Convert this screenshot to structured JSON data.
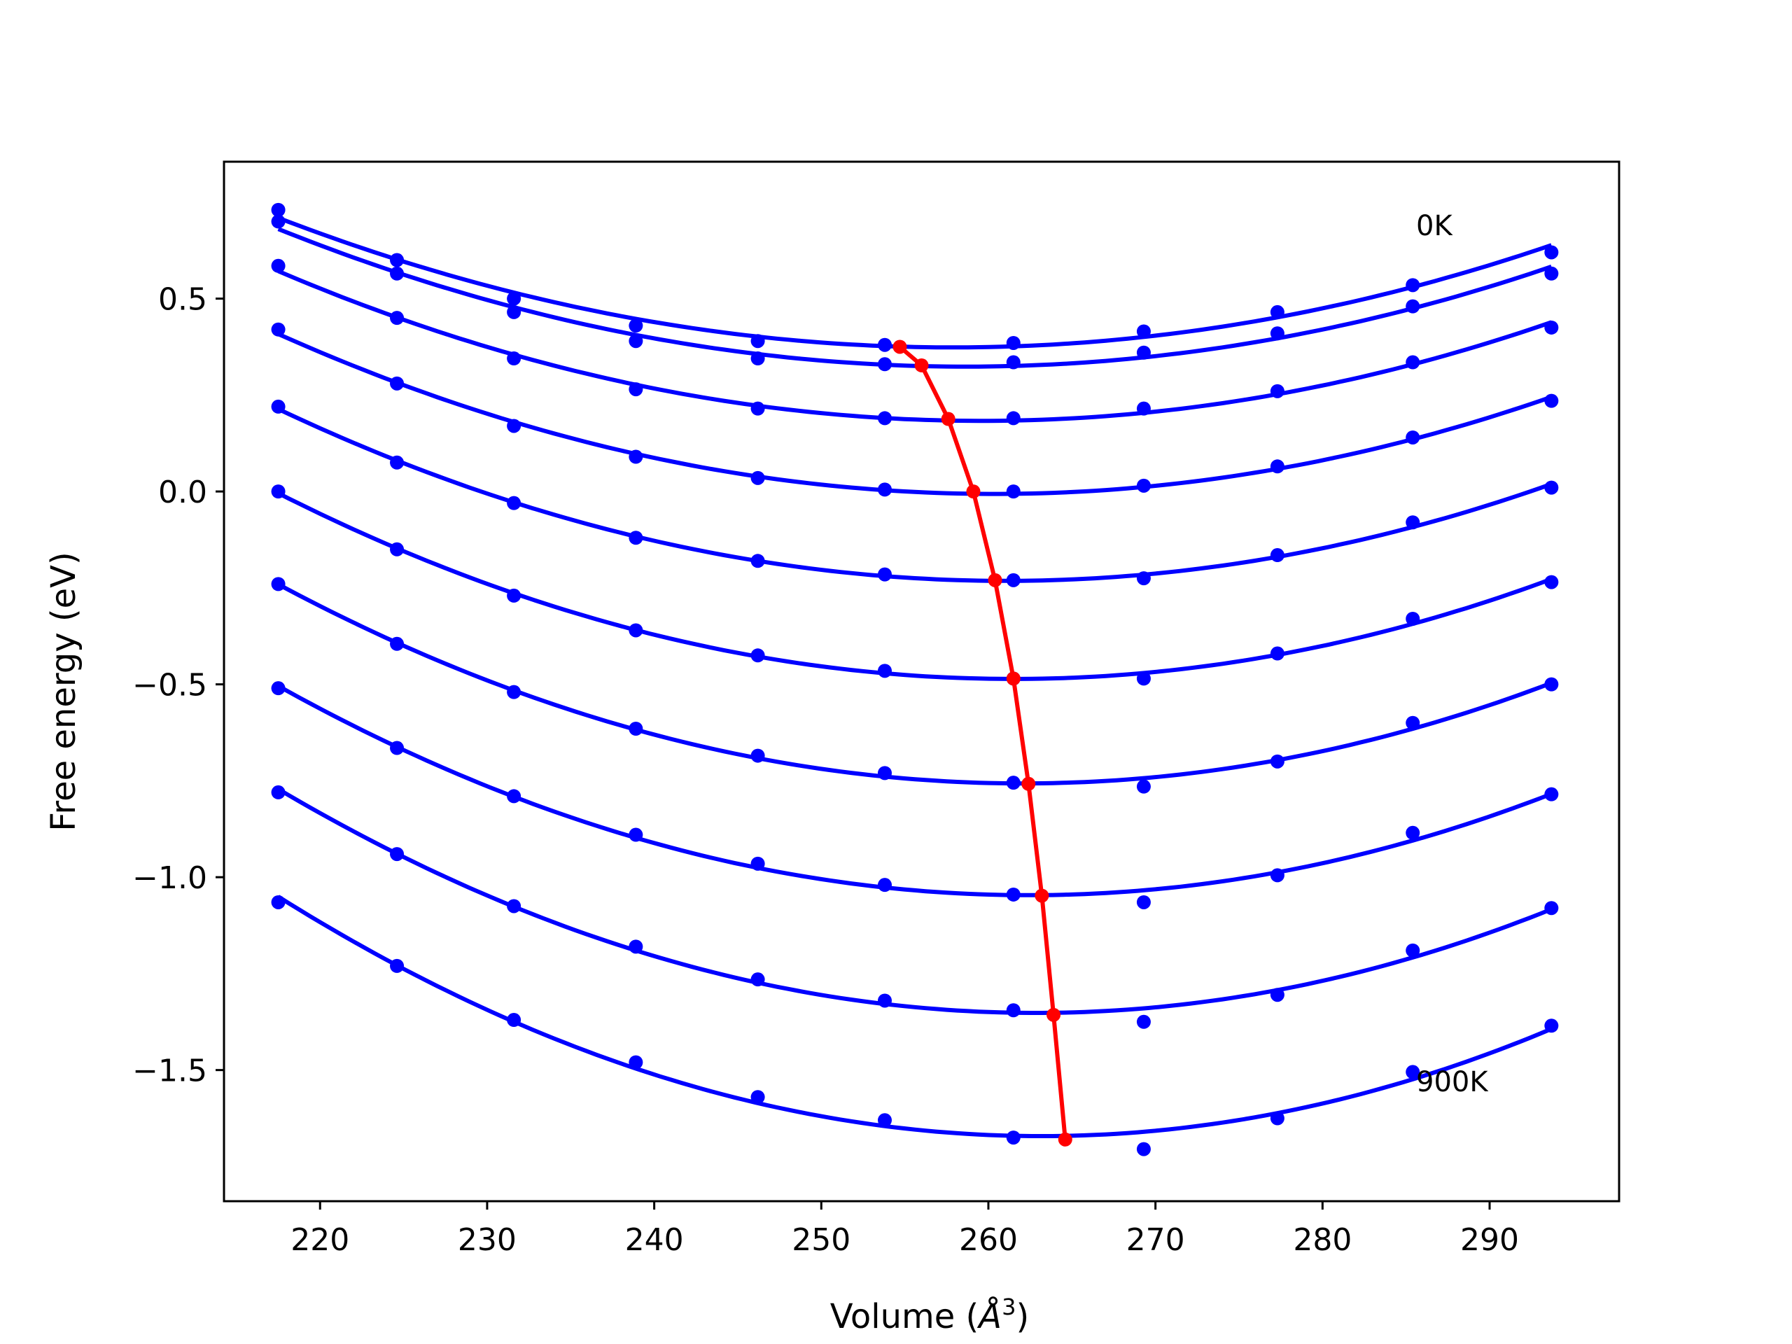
{
  "chart_data": {
    "type": "line",
    "xlabel": "Volume (",
    "xlabel_unit": "Å",
    "xlabel_exp": "3",
    "xlabel_close": ")",
    "ylabel": "Free energy (eV)",
    "xlim": [
      214.25,
      297.75
    ],
    "ylim": [
      -1.84,
      0.855
    ],
    "x_ticks": [
      220,
      230,
      240,
      250,
      260,
      270,
      280,
      290
    ],
    "x_tick_labels": [
      "220",
      "230",
      "240",
      "250",
      "260",
      "270",
      "280",
      "290"
    ],
    "y_ticks": [
      0.5,
      0.0,
      -0.5,
      -1.0,
      -1.5
    ],
    "y_tick_labels": [
      "0.5",
      "0.0",
      "−0.5",
      "−1.0",
      "−1.5"
    ],
    "annotations": [
      {
        "text": "0K",
        "x": 285.6,
        "y": 0.69
      },
      {
        "text": "900K",
        "x": 285.6,
        "y": -1.53
      }
    ],
    "grid": false,
    "colors": {
      "fit_curves": "#0000ff",
      "data_points": "#0000ff",
      "minimum_path": "#ff0000"
    },
    "volumes": [
      217.5,
      224.6,
      231.6,
      238.9,
      246.2,
      253.8,
      261.5,
      269.3,
      277.3,
      285.4,
      293.7
    ],
    "series": [
      {
        "values": [
          0.73,
          0.6,
          0.5,
          0.43,
          0.39,
          0.38,
          0.385,
          0.415,
          0.465,
          0.535,
          0.62
        ],
        "fit": {
          "vmin": 254.7,
          "fmin": 0.375
        }
      },
      {
        "values": [
          0.7,
          0.565,
          0.465,
          0.39,
          0.345,
          0.33,
          0.335,
          0.36,
          0.41,
          0.48,
          0.565
        ],
        "fit": {
          "vmin": 256.0,
          "fmin": 0.327
        }
      },
      {
        "values": [
          0.585,
          0.45,
          0.345,
          0.265,
          0.215,
          0.19,
          0.19,
          0.215,
          0.26,
          0.335,
          0.425
        ],
        "fit": {
          "vmin": 257.6,
          "fmin": 0.188
        }
      },
      {
        "values": [
          0.42,
          0.28,
          0.17,
          0.09,
          0.035,
          0.005,
          0.0,
          0.015,
          0.065,
          0.14,
          0.235
        ],
        "fit": {
          "vmin": 259.1,
          "fmin": 0.0
        }
      },
      {
        "values": [
          0.22,
          0.075,
          -0.03,
          -0.12,
          -0.18,
          -0.215,
          -0.23,
          -0.225,
          -0.165,
          -0.08,
          0.01
        ],
        "fit": {
          "vmin": 260.4,
          "fmin": -0.23
        }
      },
      {
        "values": [
          0.0,
          -0.15,
          -0.27,
          -0.36,
          -0.425,
          -0.465,
          -0.485,
          -0.485,
          -0.42,
          -0.33,
          -0.235
        ],
        "fit": {
          "vmin": 261.5,
          "fmin": -0.485
        }
      },
      {
        "values": [
          -0.24,
          -0.395,
          -0.52,
          -0.615,
          -0.685,
          -0.73,
          -0.755,
          -0.765,
          -0.7,
          -0.6,
          -0.5
        ],
        "fit": {
          "vmin": 262.4,
          "fmin": -0.758
        }
      },
      {
        "values": [
          -0.51,
          -0.665,
          -0.79,
          -0.89,
          -0.965,
          -1.02,
          -1.045,
          -1.065,
          -0.995,
          -0.885,
          -0.785
        ],
        "fit": {
          "vmin": 263.2,
          "fmin": -1.048
        }
      },
      {
        "values": [
          -0.78,
          -0.94,
          -1.075,
          -1.18,
          -1.265,
          -1.32,
          -1.345,
          -1.375,
          -1.305,
          -1.19,
          -1.08
        ],
        "fit": {
          "vmin": 263.9,
          "fmin": -1.357
        }
      },
      {
        "values": [
          -1.065,
          -1.23,
          -1.37,
          -1.48,
          -1.57,
          -1.63,
          -1.675,
          -1.705,
          -1.625,
          -1.505,
          -1.385
        ],
        "fit": {
          "vmin": 264.6,
          "fmin": -1.68
        }
      }
    ],
    "minimum_path": {
      "x": [
        254.7,
        256.0,
        257.6,
        259.1,
        260.4,
        261.5,
        262.4,
        263.2,
        263.9,
        264.6
      ],
      "y": [
        0.375,
        0.327,
        0.188,
        0.0,
        -0.23,
        -0.485,
        -0.758,
        -1.048,
        -1.357,
        -1.68
      ]
    }
  }
}
